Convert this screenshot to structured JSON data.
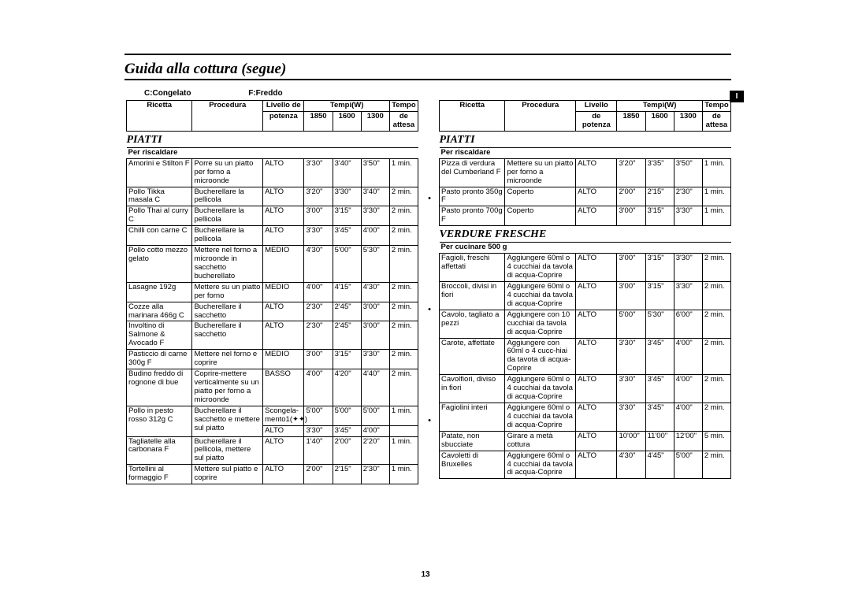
{
  "title": "Guida alla cottura (segue)",
  "legend": {
    "c": "C:Congelato",
    "f": "F:Freddo"
  },
  "side_tab": "I",
  "page_number": "13",
  "headers": {
    "ricetta": "Ricetta",
    "procedura": "Procedura",
    "livello_de": "Livello de",
    "livello": "Livello",
    "de": "de",
    "potenza": "potenza",
    "tempi": "Tempi(W)",
    "tempo": "Tempo",
    "attesa": "attesa",
    "w1850": "1850",
    "w1600": "1600",
    "w1300": "1300"
  },
  "left": {
    "piatti_title": "PIATTI",
    "subhead": "Per riscaldare",
    "rows": [
      {
        "r": "Amorini e Stilton F",
        "p": "Porre su un piatto per forno a microonde",
        "l": "ALTO",
        "t1": "3'30\"",
        "t2": "3'40\"",
        "t3": "3'50\"",
        "w": "1 min."
      },
      {
        "r": "Pollo Tikka masala C",
        "p": "Bucherellare la pellicola",
        "l": "ALTO",
        "t1": "3'20\"",
        "t2": "3'30\"",
        "t3": "3'40\"",
        "w": "2 min."
      },
      {
        "r": "Pollo Thai al curry C",
        "p": "Bucherellare la pellicola",
        "l": "ALTO",
        "t1": "3'00\"",
        "t2": "3'15\"",
        "t3": "3'30\"",
        "w": "2 min."
      },
      {
        "r": "Chilli con carne C",
        "p": "Bucherellare la pellicola",
        "l": "ALTO",
        "t1": "3'30\"",
        "t2": "3'45\"",
        "t3": "4'00\"",
        "w": "2 min."
      },
      {
        "r": "Pollo cotto mezzo gelato",
        "p": "Mettere nel forno a microonde in sacchetto bucherellato",
        "l": "MEDIO",
        "t1": "4'30\"",
        "t2": "5'00\"",
        "t3": "5'30\"",
        "w": "2 min."
      },
      {
        "r": "Lasagne 192g",
        "p": "Mettere su un piatto per forno",
        "l": "MEDIO",
        "t1": "4'00\"",
        "t2": "4'15\"",
        "t3": "4'30\"",
        "w": "2 min."
      },
      {
        "r": "Cozze alla marinara 466g C",
        "p": "Bucherellare il sacchetto",
        "l": "ALTO",
        "t1": "2'30\"",
        "t2": "2'45\"",
        "t3": "3'00\"",
        "w": "2 min."
      },
      {
        "r": "Involtino di Salmone & Avocado F",
        "p": "Bucherellare il sacchetto",
        "l": "ALTO",
        "t1": "2'30\"",
        "t2": "2'45\"",
        "t3": "3'00\"",
        "w": "2 min."
      },
      {
        "r": "Pasticcio di carne 300g F",
        "p": "Mettere nel forno e coprire",
        "l": "MEDIO",
        "t1": "3'00\"",
        "t2": "3'15\"",
        "t3": "3'30\"",
        "w": "2 min."
      },
      {
        "r": "Budino freddo di rognone di bue",
        "p": "Coprire-mettere verticalmente su un piatto per forno a microonde",
        "l": "BASSO",
        "t1": "4'00\"",
        "t2": "4'20\"",
        "t3": "4'40\"",
        "w": "2 min."
      }
    ],
    "pollo_pesto": {
      "r": "Pollo in pesto rosso 312g C",
      "p": "Bucherellare il sacchetto e mettere sul piatto",
      "l1": "Scongela-mento1(✦✦)",
      "l2": "ALTO",
      "a1": "5'00\"",
      "a2": "5'00\"",
      "a3": "5'00\"",
      "aw": "1 min.",
      "b1": "3'30\"",
      "b2": "3'45\"",
      "b3": "4'00\"",
      "bw": ""
    },
    "rows2": [
      {
        "r": "Tagliatelle alla carbonara F",
        "p": "Bucherellare il pellicola, mettere sul piatto",
        "l": "ALTO",
        "t1": "1'40\"",
        "t2": "2'00\"",
        "t3": "2'20\"",
        "w": "1 min."
      },
      {
        "r": "Tortellini al formaggio F",
        "p": "Mettere sul piatto e coprire",
        "l": "ALTO",
        "t1": "2'00\"",
        "t2": "2'15\"",
        "t3": "2'30\"",
        "w": "1 min."
      }
    ]
  },
  "right": {
    "piatti_title": "PIATTI",
    "subhead1": "Per riscaldare",
    "rows1": [
      {
        "r": "Pizza di verdura del Cumberland F",
        "p": "Mettere su un piatto per forno a microonde",
        "l": "ALTO",
        "t1": "3'20\"",
        "t2": "3'35\"",
        "t3": "3'50\"",
        "w": "1 min."
      },
      {
        "r": "Pasto pronto 350g F",
        "p": "Coperto",
        "l": "ALTO",
        "t1": "2'00\"",
        "t2": "2'15\"",
        "t3": "2'30\"",
        "w": "1 min."
      },
      {
        "r": "Pasto pronto 700g F",
        "p": "Coperto",
        "l": "ALTO",
        "t1": "3'00\"",
        "t2": "3'15\"",
        "t3": "3'30\"",
        "w": "1 min."
      }
    ],
    "verdure_title": "VERDURE FRESCHE",
    "subhead2": "Per cucinare 500 g",
    "rows2": [
      {
        "r": "Fagioli, freschi affettati",
        "p": "Aggiungere 60ml o 4 cucchiai da tavola di acqua-Coprire",
        "l": "ALTO",
        "t1": "3'00\"",
        "t2": "3'15\"",
        "t3": "3'30\"",
        "w": "2 min."
      },
      {
        "r": "Broccoli, divisi in fiori",
        "p": "Aggiungere 60ml o 4 cucchiai da tavola di acqua-Coprire",
        "l": "ALTO",
        "t1": "3'00\"",
        "t2": "3'15\"",
        "t3": "3'30\"",
        "w": "2 min."
      },
      {
        "r": "Cavolo, tagliato a pezzi",
        "p": "Aggiungere con 10 cucchiai da tavola di acqua-Coprire",
        "l": "ALTO",
        "t1": "5'00\"",
        "t2": "5'30\"",
        "t3": "6'00\"",
        "w": "2 min."
      },
      {
        "r": "Carote, affettate",
        "p": "Aggiungere con 60ml o 4 cucc-hiai da tavota di acqua-Coprire",
        "l": "ALTO",
        "t1": "3'30\"",
        "t2": "3'45\"",
        "t3": "4'00\"",
        "w": "2 min."
      },
      {
        "r": "Cavolfiori, diviso in fiori",
        "p": "Aggiungere 60ml o 4 cucchiai da tavola di acqua-Coprire",
        "l": "ALTO",
        "t1": "3'30\"",
        "t2": "3'45\"",
        "t3": "4'00\"",
        "w": "2 min."
      },
      {
        "r": "Fagiolini interi",
        "p": "Aggiungere 60ml o 4 cucchiai da tavola di acqua-Coprire",
        "l": "ALTO",
        "t1": "3'30\"",
        "t2": "3'45\"",
        "t3": "4'00\"",
        "w": "2 min."
      },
      {
        "r": "Patate, non sbucciate",
        "p": "Girare a metà cottura",
        "l": "ALTO",
        "t1": "10'00\"",
        "t2": "11'00\"",
        "t3": "12'00\"",
        "w": "5 min."
      },
      {
        "r": "Cavoletti di Bruxelles",
        "p": "Aggiungere 60ml o 4 cucchiai da tavola di acqua-Coprire",
        "l": "ALTO",
        "t1": "4'30\"",
        "t2": "4'45\"",
        "t3": "5'00\"",
        "w": "2 min."
      }
    ]
  }
}
